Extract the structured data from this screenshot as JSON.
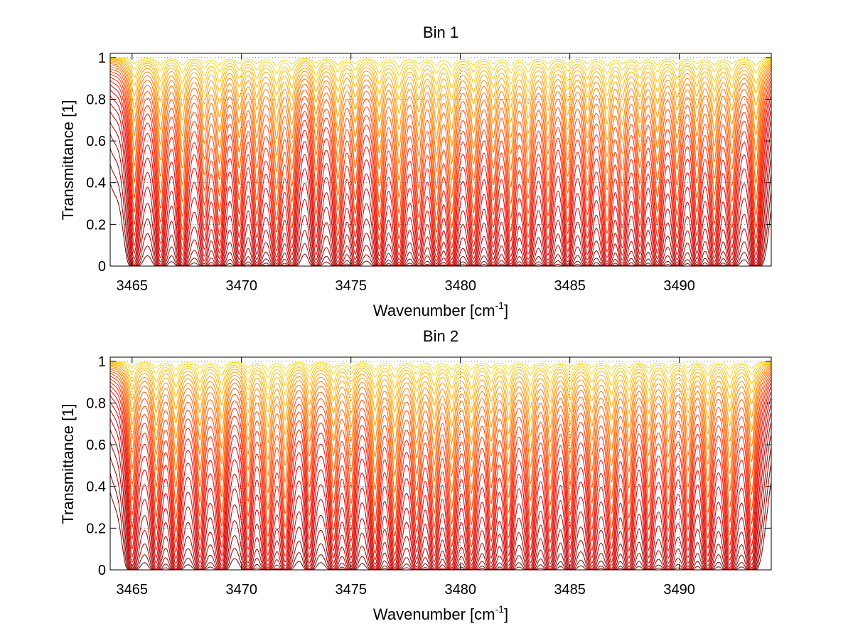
{
  "chart_data": [
    {
      "type": "line",
      "title": "Bin 1",
      "xlabel": "Wavenumber [cm",
      "xlabel_sup": "-1",
      "xlabel_end": "]",
      "ylabel": "Transmittance [1]",
      "xlim": [
        3464,
        3494.2
      ],
      "ylim": [
        0,
        1.02
      ],
      "xticks": [
        3465,
        3470,
        3475,
        3480,
        3485,
        3490
      ],
      "xtick_labels": [
        "3465",
        "3470",
        "3475",
        "3480",
        "3485",
        "3490"
      ],
      "yticks": [
        0,
        0.2,
        0.4,
        0.6,
        0.8,
        1
      ],
      "ytick_labels": [
        "0",
        "0.2",
        "0.4",
        "0.6",
        "0.8",
        "1"
      ],
      "grid": "dotted",
      "colormap": [
        "#7a0000",
        "#b00000",
        "#e00000",
        "#ff3000",
        "#ff7000",
        "#ffb000",
        "#ffe000"
      ],
      "absorption_lines": [
        {
          "x": 3465.1,
          "depth": 0.6
        },
        {
          "x": 3466.3,
          "depth": 0.7
        },
        {
          "x": 3467.3,
          "depth": 0.8
        },
        {
          "x": 3468.3,
          "depth": 0.5
        },
        {
          "x": 3469.0,
          "depth": 0.7
        },
        {
          "x": 3469.9,
          "depth": 0.6
        },
        {
          "x": 3470.7,
          "depth": 0.6
        },
        {
          "x": 3471.6,
          "depth": 0.8
        },
        {
          "x": 3472.3,
          "depth": 0.6
        },
        {
          "x": 3473.4,
          "depth": 0.5
        },
        {
          "x": 3474.4,
          "depth": 0.7
        },
        {
          "x": 3475.2,
          "depth": 0.6
        },
        {
          "x": 3476.3,
          "depth": 0.8
        },
        {
          "x": 3477.2,
          "depth": 0.9
        },
        {
          "x": 3478.1,
          "depth": 0.6
        },
        {
          "x": 3478.9,
          "depth": 0.8
        },
        {
          "x": 3479.6,
          "depth": 0.9
        },
        {
          "x": 3480.6,
          "depth": 0.7
        },
        {
          "x": 3481.5,
          "depth": 0.6
        },
        {
          "x": 3482.3,
          "depth": 0.8
        },
        {
          "x": 3483.1,
          "depth": 0.7
        },
        {
          "x": 3484.0,
          "depth": 0.6
        },
        {
          "x": 3484.9,
          "depth": 0.7
        },
        {
          "x": 3485.8,
          "depth": 0.6
        },
        {
          "x": 3486.7,
          "depth": 0.8
        },
        {
          "x": 3487.4,
          "depth": 0.6
        },
        {
          "x": 3488.2,
          "depth": 0.6
        },
        {
          "x": 3489.0,
          "depth": 0.7
        },
        {
          "x": 3489.9,
          "depth": 0.6
        },
        {
          "x": 3490.8,
          "depth": 0.6
        },
        {
          "x": 3491.6,
          "depth": 0.7
        },
        {
          "x": 3492.4,
          "depth": 0.6
        },
        {
          "x": 3493.5,
          "depth": 0.8
        }
      ],
      "optical_depth_scales": [
        0.02,
        0.04,
        0.07,
        0.1,
        0.14,
        0.19,
        0.25,
        0.32,
        0.4,
        0.5,
        0.62,
        0.76,
        0.92,
        1.1,
        1.32,
        1.58,
        1.9,
        2.3,
        2.8,
        3.4,
        4.2,
        5.2,
        6.5,
        8.2,
        10.5
      ]
    },
    {
      "type": "line",
      "title": "Bin 2",
      "xlabel": "Wavenumber [cm",
      "xlabel_sup": "-1",
      "xlabel_end": "]",
      "ylabel": "Transmittance [1]",
      "xlim": [
        3464,
        3494.2
      ],
      "ylim": [
        0,
        1.02
      ],
      "xticks": [
        3465,
        3470,
        3475,
        3480,
        3485,
        3490
      ],
      "xtick_labels": [
        "3465",
        "3470",
        "3475",
        "3480",
        "3485",
        "3490"
      ],
      "yticks": [
        0,
        0.2,
        0.4,
        0.6,
        0.8,
        1
      ],
      "ytick_labels": [
        "0",
        "0.2",
        "0.4",
        "0.6",
        "0.8",
        "1"
      ],
      "grid": "dotted",
      "colormap": [
        "#7a0000",
        "#b00000",
        "#e00000",
        "#ff3000",
        "#ff7000",
        "#ffb000",
        "#ffe000"
      ],
      "absorption_lines": [
        {
          "x": 3465.0,
          "depth": 0.6
        },
        {
          "x": 3466.1,
          "depth": 0.6
        },
        {
          "x": 3467.0,
          "depth": 0.8
        },
        {
          "x": 3468.1,
          "depth": 0.6
        },
        {
          "x": 3469.1,
          "depth": 0.7
        },
        {
          "x": 3470.3,
          "depth": 0.6
        },
        {
          "x": 3471.2,
          "depth": 0.8
        },
        {
          "x": 3472.0,
          "depth": 0.7
        },
        {
          "x": 3473.1,
          "depth": 0.5
        },
        {
          "x": 3474.2,
          "depth": 0.6
        },
        {
          "x": 3475.0,
          "depth": 0.6
        },
        {
          "x": 3476.1,
          "depth": 0.8
        },
        {
          "x": 3477.0,
          "depth": 0.8
        },
        {
          "x": 3478.0,
          "depth": 0.6
        },
        {
          "x": 3478.8,
          "depth": 0.7
        },
        {
          "x": 3479.6,
          "depth": 0.8
        },
        {
          "x": 3480.5,
          "depth": 0.8
        },
        {
          "x": 3481.4,
          "depth": 0.6
        },
        {
          "x": 3482.2,
          "depth": 0.7
        },
        {
          "x": 3483.2,
          "depth": 0.7
        },
        {
          "x": 3484.1,
          "depth": 0.6
        },
        {
          "x": 3485.0,
          "depth": 0.6
        },
        {
          "x": 3486.0,
          "depth": 0.6
        },
        {
          "x": 3486.9,
          "depth": 0.7
        },
        {
          "x": 3487.7,
          "depth": 0.6
        },
        {
          "x": 3488.6,
          "depth": 0.6
        },
        {
          "x": 3489.5,
          "depth": 0.6
        },
        {
          "x": 3490.4,
          "depth": 0.6
        },
        {
          "x": 3491.3,
          "depth": 0.7
        },
        {
          "x": 3492.3,
          "depth": 0.8
        },
        {
          "x": 3493.3,
          "depth": 0.7
        }
      ],
      "optical_depth_scales": [
        0.02,
        0.04,
        0.07,
        0.1,
        0.14,
        0.19,
        0.25,
        0.32,
        0.4,
        0.5,
        0.62,
        0.76,
        0.92,
        1.1,
        1.32,
        1.58,
        1.9,
        2.3,
        2.8,
        3.4,
        4.2,
        5.2,
        6.5,
        8.2,
        10.5
      ]
    }
  ]
}
